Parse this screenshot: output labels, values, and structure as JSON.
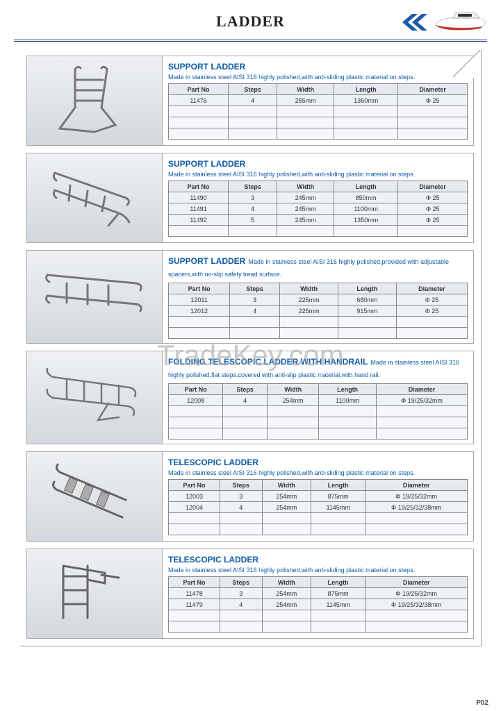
{
  "page": {
    "title": "LADDER",
    "number": "P02",
    "watermark": "TradeKey.com"
  },
  "colors": {
    "title_blue": "#0a5aa8",
    "border_gray": "#888888",
    "panel_bg": "#d9dde2",
    "cell_bg": "#eef1f5",
    "header_accent": "#1a3a7a",
    "boat_red": "#c0392b"
  },
  "table_headers": [
    "Part No",
    "Steps",
    "Width",
    "Length",
    "Diameter"
  ],
  "products": [
    {
      "title": "SUPPORT LADDER",
      "desc": "Made in stainless steel AISI 316 highly polished,with anti-sliding plastic material on steps.",
      "desc_block": true,
      "rows": [
        [
          "11476",
          "4",
          "255mm",
          "1360mm",
          "Φ 25"
        ]
      ],
      "empty_rows": 3
    },
    {
      "title": "SUPPORT LADDER",
      "desc": "Made in stainless steel AISI 316 highly polished,with anti-sliding plastic material on steps.",
      "desc_block": true,
      "rows": [
        [
          "11490",
          "3",
          "245mm",
          "850mm",
          "Φ 25"
        ],
        [
          "11491",
          "4",
          "245mm",
          "1100mm",
          "Φ 25"
        ],
        [
          "11492",
          "5",
          "245mm",
          "1350mm",
          "Φ 25"
        ]
      ],
      "empty_rows": 1
    },
    {
      "title": "SUPPORT LADDER",
      "desc": "Made in stainless steel AISI 316 highly polished,provided with adjustable spacers,with no-slip safety tread surface.",
      "desc_block": false,
      "rows": [
        [
          "12011",
          "3",
          "225mm",
          "680mm",
          "Φ 25"
        ],
        [
          "12012",
          "4",
          "225mm",
          "915mm",
          "Φ 25"
        ]
      ],
      "empty_rows": 2
    },
    {
      "title": "FOLDING TELESCOPIC LADDER WITH HANDRAIL",
      "desc": "Made in stainless steel AISI 316 highly polished,flat steps,covered with anti-slip plastic material,with hand rail.",
      "desc_block": false,
      "rows": [
        [
          "12008",
          "4",
          "254mm",
          "1100mm",
          "Φ 19/25/32mm"
        ]
      ],
      "empty_rows": 3
    },
    {
      "title": "TELESCOPIC LADDER",
      "desc": "Made in stainless steel AISI 316 highly polished,with anti-sliding plastic material on steps.",
      "desc_block": true,
      "rows": [
        [
          "12003",
          "3",
          "254mm",
          "875mm",
          "Φ 19/25/32mm"
        ],
        [
          "12004",
          "4",
          "254mm",
          "1145mm",
          "Φ 19/25/32/38mm"
        ]
      ],
      "empty_rows": 2
    },
    {
      "title": "TELESCOPIC LADDER",
      "desc": "Made in stainless steel AISI 316 highly polished,with anti-sliding plastic material on steps.",
      "desc_block": true,
      "rows": [
        [
          "11478",
          "3",
          "254mm",
          "875mm",
          "Φ 19/25/32mm"
        ],
        [
          "11479",
          "4",
          "254mm",
          "1145mm",
          "Φ 19/25/32/38mm"
        ]
      ],
      "empty_rows": 2
    }
  ]
}
